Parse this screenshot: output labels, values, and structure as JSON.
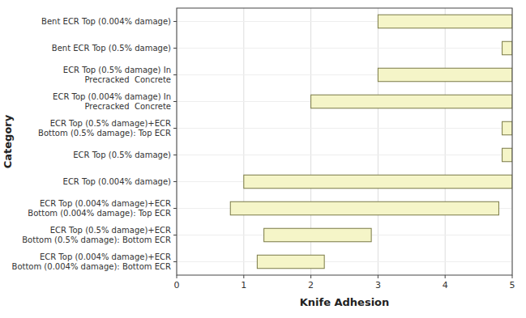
{
  "chart_data": {
    "type": "bar",
    "orientation": "horizontal",
    "categories": [
      "Bent ECR Top (0.004% damage)",
      "Bent ECR Top (0.5% damage)",
      "ECR Top (0.5% damage) In\nPrecracked  Concrete",
      "ECR Top (0.004% damage) In\nPrecracked  Concrete",
      "ECR Top (0.5% damage)+ECR\nBottom (0.5% damage): Top ECR",
      "ECR Top (0.5% damage)",
      "ECR Top (0.004% damage)",
      "ECR Top (0.004% damage)+ECR\nBottom (0.004% damage): Top ECR",
      "ECR Top (0.5% damage)+ECR\nBottom (0.5% damage): Bottom ECR",
      "ECR Top (0.004% damage)+ECR\nBottom (0.004% damage): Bottom ECR"
    ],
    "starts": [
      3.0,
      4.85,
      3.0,
      2.0,
      4.85,
      4.85,
      1.0,
      0.8,
      1.3,
      1.2
    ],
    "values": [
      5.0,
      5.0,
      5.0,
      5.0,
      5.0,
      5.0,
      5.0,
      4.8,
      2.9,
      2.2
    ],
    "color": "#f5f5c8",
    "xlabel": "Knife Adhesion",
    "ylabel": "Category",
    "xlim": [
      0,
      5.0
    ],
    "xticks": [
      0,
      1,
      2,
      3,
      4,
      5
    ],
    "grid": true
  }
}
